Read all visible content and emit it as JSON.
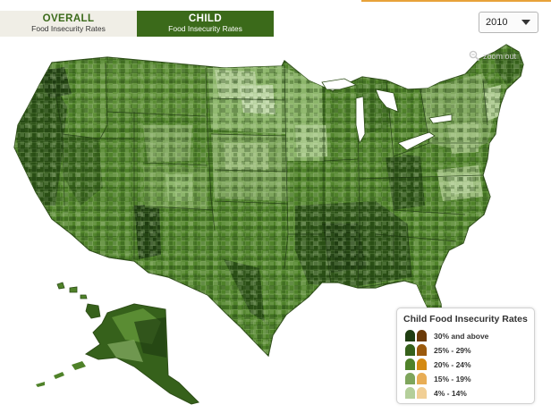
{
  "tabs": [
    {
      "title": "OVERALL",
      "subtitle": "Food Insecurity Rates",
      "active": false
    },
    {
      "title": "CHILD",
      "subtitle": "Food Insecurity Rates",
      "active": true
    }
  ],
  "year_select": {
    "value": "2010"
  },
  "zoom": {
    "label": "zoom out",
    "icon": "magnifier-icon"
  },
  "legend": {
    "title": "Child Food Insecurity Rates",
    "items": [
      {
        "label": "30% and above",
        "green": "#1f3d11",
        "orange": "#6b3a08"
      },
      {
        "label": "25% - 29%",
        "green": "#36611b",
        "orange": "#9b5a0c"
      },
      {
        "label": "20% - 24%",
        "green": "#4f8229",
        "orange": "#d48a12"
      },
      {
        "label": "15% - 19%",
        "green": "#7ea55c",
        "orange": "#e8ad55"
      },
      {
        "label": "4% - 14%",
        "green": "#b4cf9a",
        "orange": "#f1cf95"
      }
    ]
  },
  "colors": {
    "accent_green": "#3b6a1a",
    "accent_orange": "#e8a23a"
  }
}
